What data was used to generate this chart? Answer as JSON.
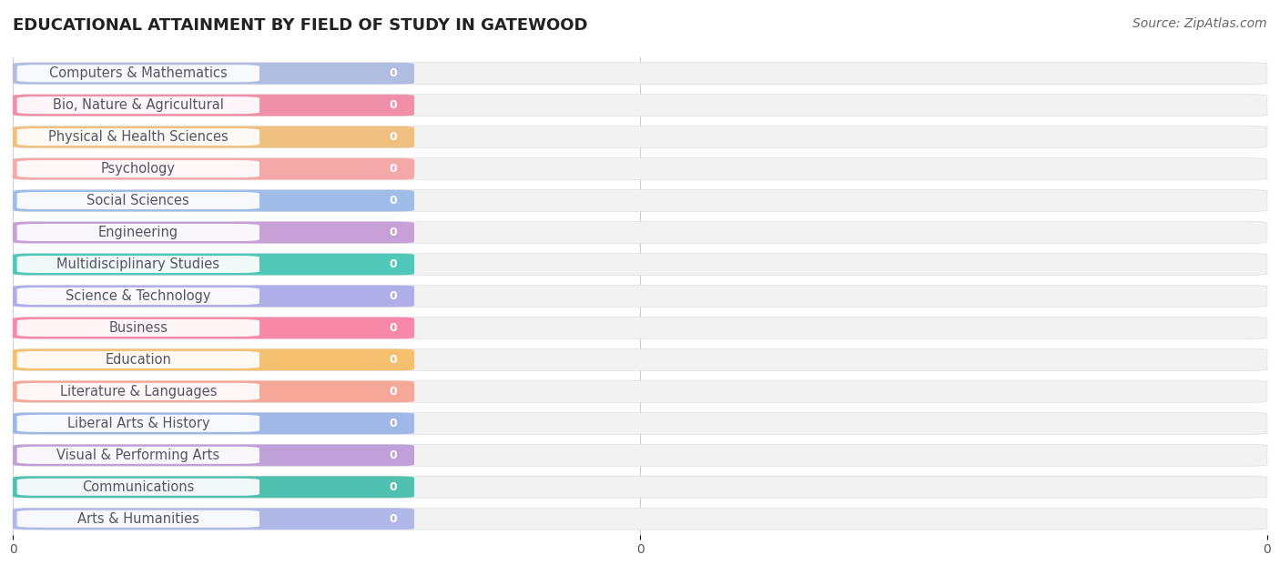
{
  "title": "EDUCATIONAL ATTAINMENT BY FIELD OF STUDY IN GATEWOOD",
  "source": "Source: ZipAtlas.com",
  "categories": [
    "Computers & Mathematics",
    "Bio, Nature & Agricultural",
    "Physical & Health Sciences",
    "Psychology",
    "Social Sciences",
    "Engineering",
    "Multidisciplinary Studies",
    "Science & Technology",
    "Business",
    "Education",
    "Literature & Languages",
    "Liberal Arts & History",
    "Visual & Performing Arts",
    "Communications",
    "Arts & Humanities"
  ],
  "values": [
    0,
    0,
    0,
    0,
    0,
    0,
    0,
    0,
    0,
    0,
    0,
    0,
    0,
    0,
    0
  ],
  "bar_colors": [
    "#b0bce0",
    "#f090a8",
    "#f0c080",
    "#f5a8a8",
    "#a0bce8",
    "#c8a0d8",
    "#50c8b8",
    "#b0aee8",
    "#f888a8",
    "#f5c070",
    "#f5a898",
    "#a0b8e8",
    "#c0a0d8",
    "#50c0b0",
    "#b0b8e8"
  ],
  "text_color": "#555566",
  "bg_color": "#ffffff",
  "bar_bg_color": "#f2f2f2",
  "row_line_color": "#e0e0e0",
  "title_fontsize": 13,
  "source_fontsize": 10,
  "label_fontsize": 10.5,
  "value_fontsize": 9
}
